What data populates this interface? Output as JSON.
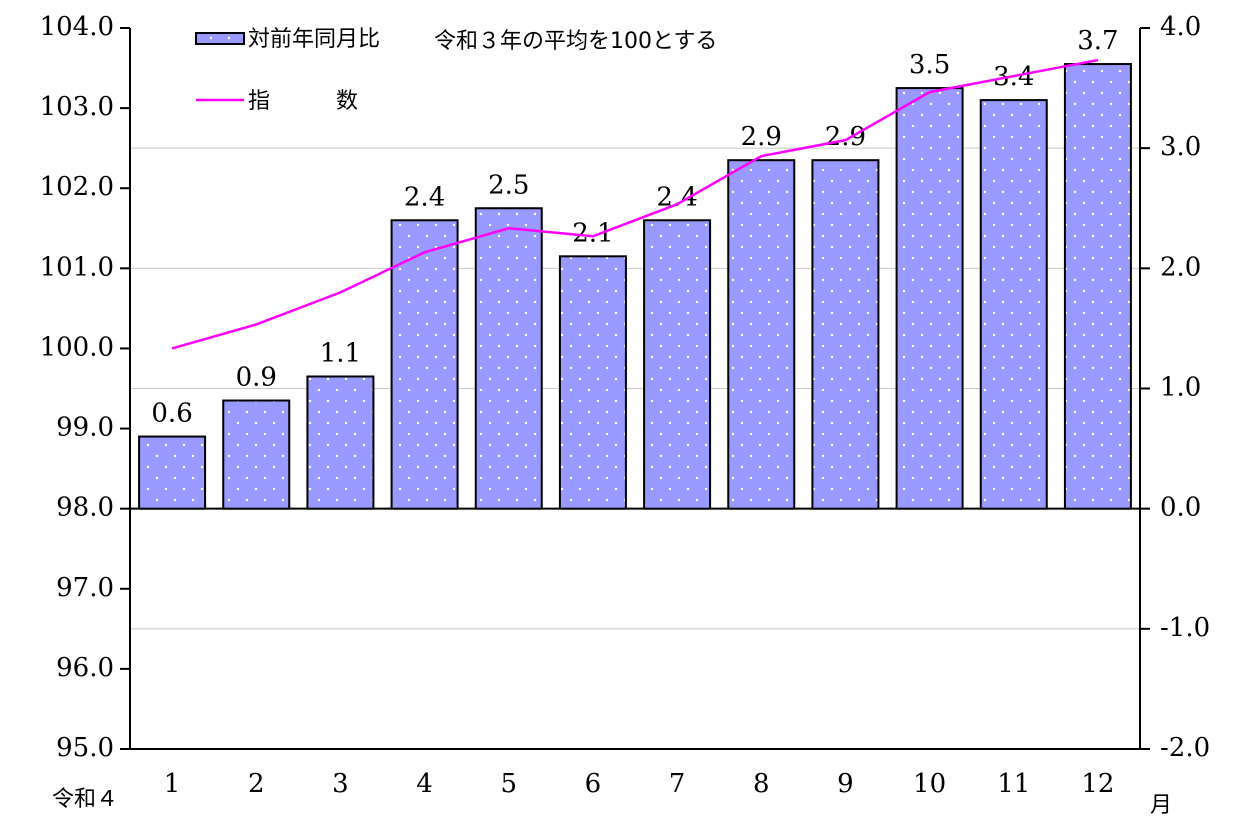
{
  "chart_data": {
    "type": "bar_line",
    "annotation": "令和３年の平均を100とする",
    "x_label_left": "令和４",
    "x_label_right": "月",
    "categories": [
      "1",
      "2",
      "3",
      "4",
      "5",
      "6",
      "7",
      "8",
      "9",
      "10",
      "11",
      "12"
    ],
    "series": [
      {
        "name": "対前年同月比",
        "type": "bar",
        "axis": "y2",
        "color": "#9999ff",
        "values": [
          0.6,
          0.9,
          1.1,
          2.4,
          2.5,
          2.1,
          2.4,
          2.9,
          2.9,
          3.5,
          3.4,
          3.7
        ]
      },
      {
        "name": "指　　　数",
        "type": "line",
        "axis": "y",
        "color": "#ff00ff",
        "values": [
          100.0,
          100.3,
          100.7,
          101.2,
          101.5,
          101.4,
          101.8,
          102.4,
          102.6,
          103.2,
          103.4,
          103.6
        ]
      }
    ],
    "ylim": [
      95,
      104
    ],
    "yticks": [
      {
        "value": 95,
        "label": "95.0"
      },
      {
        "value": 96,
        "label": "96.0"
      },
      {
        "value": 97,
        "label": "97.0"
      },
      {
        "value": 98,
        "label": "98.0"
      },
      {
        "value": 99,
        "label": "99.0"
      },
      {
        "value": 100,
        "label": "100.0"
      },
      {
        "value": 101,
        "label": "101.0"
      },
      {
        "value": 102,
        "label": "102.0"
      },
      {
        "value": 103,
        "label": "103.0"
      },
      {
        "value": 104,
        "label": "104.0"
      }
    ],
    "y2lim": [
      -2,
      4
    ],
    "y2ticks": [
      {
        "value": -2,
        "label": "-2.0"
      },
      {
        "value": -1,
        "label": "-1.0"
      },
      {
        "value": 0,
        "label": "0.0"
      },
      {
        "value": 1,
        "label": "1.0"
      },
      {
        "value": 2,
        "label": "2.0"
      },
      {
        "value": 3,
        "label": "3.0"
      },
      {
        "value": 4,
        "label": "4.0"
      }
    ],
    "grid": "y2"
  }
}
